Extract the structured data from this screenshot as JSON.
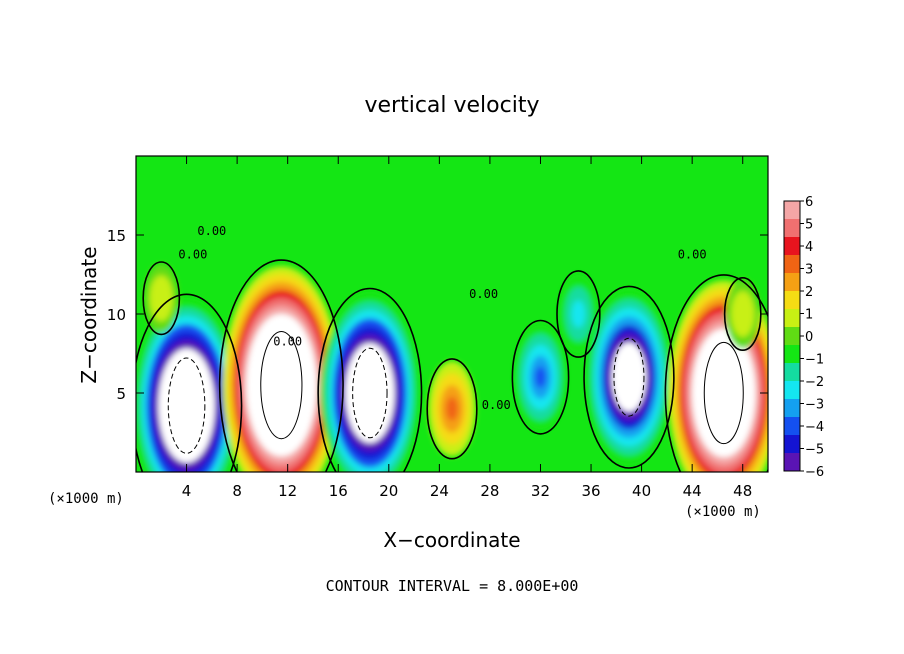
{
  "chart_data": {
    "type": "heatmap",
    "title": "vertical velocity",
    "xlabel": "X−coordinate",
    "ylabel": "Z−coordinate",
    "x_unit": "(×1000 m)",
    "z_unit": "(×1000 m)",
    "xlim": [
      0,
      50
    ],
    "ylim": [
      0,
      20
    ],
    "x_ticks": [
      4,
      8,
      12,
      16,
      20,
      24,
      28,
      32,
      36,
      40,
      44,
      48
    ],
    "y_ticks": [
      5,
      10,
      15
    ],
    "colorbar": {
      "ticks": [
        "6",
        "5",
        "4",
        "3",
        "2",
        "1",
        "0",
        "−1",
        "−2",
        "−3",
        "−4",
        "−5",
        "−6"
      ],
      "vmin": -6,
      "vmax": 6,
      "colors": [
        "#f4a6a6",
        "#f07070",
        "#e8141e",
        "#f06414",
        "#f5a014",
        "#f5dc14",
        "#c8f014",
        "#60dc14",
        "#14e614",
        "#14dca0",
        "#14e6f0",
        "#14a0f0",
        "#1450f0",
        "#1414d2",
        "#5a14b4"
      ]
    },
    "contour_labels": [
      "0.00",
      "0.00",
      "0.00",
      "0.00",
      "0.00",
      "0.00"
    ],
    "footer": "CONTOUR INTERVAL = 8.000E+00",
    "features": [
      {
        "x": 4.0,
        "z": 4.2,
        "w": -12
      },
      {
        "x": 11.5,
        "z": 5.5,
        "w": 14
      },
      {
        "x": 18.5,
        "z": 5.0,
        "w": -11
      },
      {
        "x": 25.0,
        "z": 4.0,
        "w": 3
      },
      {
        "x": 32.0,
        "z": 6.0,
        "w": -4
      },
      {
        "x": 35.0,
        "z": 10.0,
        "w": -2
      },
      {
        "x": 39.0,
        "z": 6.0,
        "w": -9
      },
      {
        "x": 46.5,
        "z": 5.0,
        "w": 13
      },
      {
        "x": 2.0,
        "z": 11.0,
        "w": 1
      },
      {
        "x": 48.0,
        "z": 10.0,
        "w": 1
      }
    ]
  }
}
